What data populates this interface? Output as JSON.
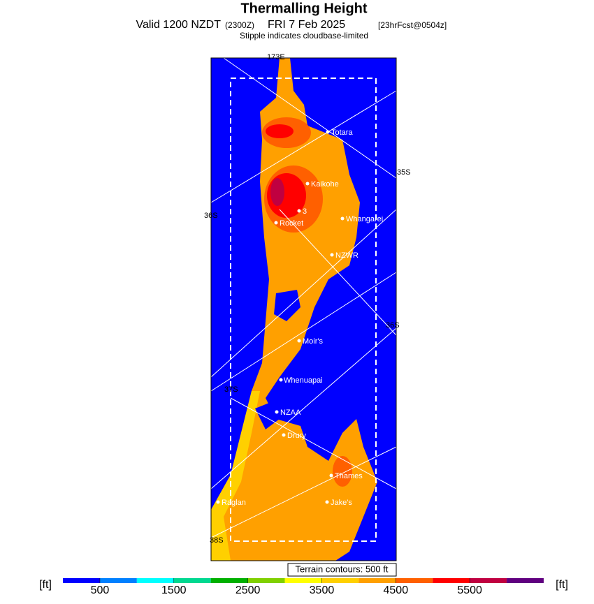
{
  "header": {
    "title": "Thermalling Height",
    "subtitle_valid": "Valid 1200 NZDT",
    "subtitle_utc": "(2300Z)",
    "subtitle_date": "FRI 7 Feb 2025",
    "forecast": "[23hrFcst@0504z]",
    "note": "Stipple indicates cloudbase-limited"
  },
  "map": {
    "places": [
      "Totara",
      "Kaikohe",
      "3",
      "Rocket",
      "Whangarei",
      "NZWR",
      "Moir's",
      "Whenuapai",
      "NZAA",
      "Drury",
      "Thames",
      "Raglan",
      "Jake's"
    ],
    "grid_labels": [
      "173E",
      "35S",
      "36S",
      "36S",
      "37S",
      "38S"
    ],
    "terrain_note": "Terrain contours: 500 ft"
  },
  "colorbar": {
    "unit_left": "[ft]",
    "unit_right": "[ft]",
    "range": [
      0,
      6500
    ],
    "ticks": [
      500,
      1500,
      2500,
      3500,
      4500,
      5500
    ],
    "colors": [
      "#0000ff",
      "#0080ff",
      "#00ffff",
      "#00d890",
      "#00b000",
      "#80d000",
      "#ffff00",
      "#ffd000",
      "#ffa000",
      "#ff6000",
      "#ff0000",
      "#c00040",
      "#600080"
    ]
  }
}
